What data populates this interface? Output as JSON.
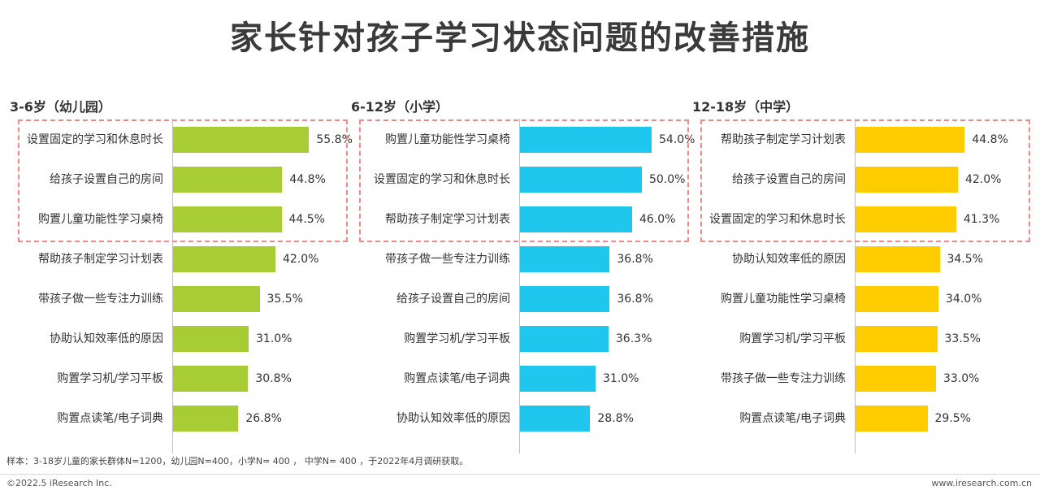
{
  "title": "家长针对孩子学习状态问题的改善措施",
  "note": "样本：3-18岁儿童的家长群体N=1200，幼儿园N=400，小学N= 400 ， 中学N= 400 ，于2022年4月调研获取。",
  "copyright": "©2022.5 iResearch Inc.",
  "website": "www.iresearch.com.cn",
  "chart_data": [
    {
      "type": "bar",
      "orientation": "horizontal",
      "title": "3-6岁（幼儿园）",
      "color": "#a8cc34",
      "xlim": [
        0,
        60
      ],
      "categories": [
        "设置固定的学习和休息时长",
        "给孩子设置自己的房间",
        "购置儿童功能性学习桌椅",
        "帮助孩子制定学习计划表",
        "带孩子做一些专注力训练",
        "协助认知效率低的原因",
        "购置学习机/学习平板",
        "购置点读笔/电子词典"
      ],
      "values": [
        55.8,
        44.8,
        44.5,
        42.0,
        35.5,
        31.0,
        30.8,
        26.8
      ],
      "labels": [
        "55.8%",
        "44.8%",
        "44.5%",
        "42.0%",
        "35.5%",
        "31.0%",
        "30.8%",
        "26.8%"
      ],
      "highlighted_top": 3
    },
    {
      "type": "bar",
      "orientation": "horizontal",
      "title": "6-12岁（小学）",
      "color": "#1fc6ee",
      "xlim": [
        0,
        60
      ],
      "categories": [
        "购置儿童功能性学习桌椅",
        "设置固定的学习和休息时长",
        "帮助孩子制定学习计划表",
        "带孩子做一些专注力训练",
        "给孩子设置自己的房间",
        "购置学习机/学习平板",
        "购置点读笔/电子词典",
        "协助认知效率低的原因"
      ],
      "values": [
        54.0,
        50.0,
        46.0,
        36.8,
        36.8,
        36.3,
        31.0,
        28.8
      ],
      "labels": [
        "54.0%",
        "50.0%",
        "46.0%",
        "36.8%",
        "36.8%",
        "36.3%",
        "31.0%",
        "28.8%"
      ],
      "highlighted_top": 3
    },
    {
      "type": "bar",
      "orientation": "horizontal",
      "title": "12-18岁（中学）",
      "color": "#ffcc00",
      "xlim": [
        0,
        60
      ],
      "categories": [
        "帮助孩子制定学习计划表",
        "给孩子设置自己的房间",
        "设置固定的学习和休息时长",
        "协助认知效率低的原因",
        "购置儿童功能性学习桌椅",
        "购置学习机/学习平板",
        "带孩子做一些专注力训练",
        "购置点读笔/电子词典"
      ],
      "values": [
        44.8,
        42.0,
        41.3,
        34.5,
        34.0,
        33.5,
        33.0,
        29.5
      ],
      "labels": [
        "44.8%",
        "42.0%",
        "41.3%",
        "34.5%",
        "34.0%",
        "33.5%",
        "33.0%",
        "29.5%"
      ],
      "highlighted_top": 3
    }
  ]
}
